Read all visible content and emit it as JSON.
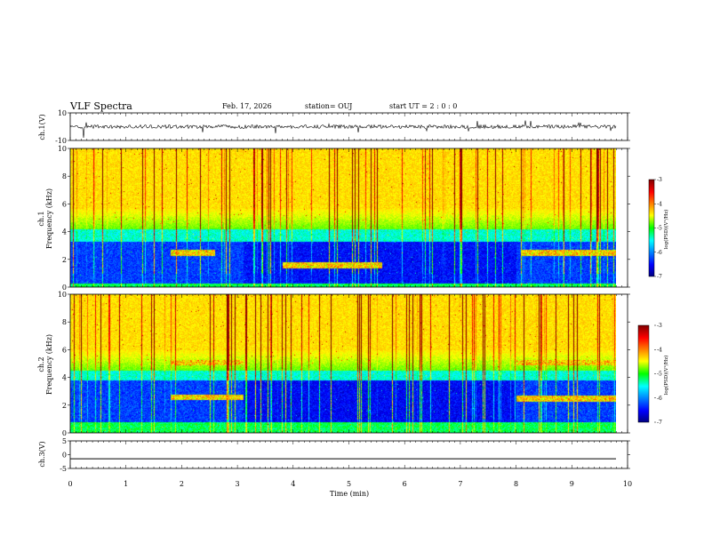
{
  "header": {
    "title": "VLF Spectra",
    "date": "Feb. 17, 2026",
    "station": "station= OUJ",
    "start": "start  UT  =   2  : 0   : 0"
  },
  "chart_data": [
    {
      "type": "line",
      "panel": "waveform-ch1",
      "ylabel": "ch.1(V)",
      "ylim": [
        -10,
        10
      ],
      "yticks": [
        "10",
        "-10"
      ],
      "xlim": [
        0,
        10
      ],
      "series": [
        {
          "values_note": "",
          "baseline": 0
        }
      ]
    },
    {
      "type": "heatmap",
      "panel": "spectrogram-ch1",
      "ylabel_ch": "ch.1",
      "ylabel": "Frequency  (kHz)",
      "ylim": [
        0,
        10
      ],
      "yticks": [
        "0",
        "2",
        "4",
        "6",
        "8",
        "10"
      ],
      "xlim": [
        0,
        9.8
      ],
      "colorbar": {
        "label": "log(PSD)(V²/Hz)",
        "ticks": [
          "-3",
          "-4",
          "-5",
          "-6",
          "-7"
        ],
        "range": [
          -7,
          -3
        ]
      },
      "low_band_khz": [
        0.3,
        3.3
      ],
      "hiss_top_khz": 4.2,
      "segments": [
        {
          "t0": 1.8,
          "t1": 2.6,
          "f": 2.5
        },
        {
          "t0": 8.1,
          "t1": 9.8,
          "f": 2.5
        },
        {
          "t0": 3.8,
          "t1": 4.8,
          "f": 1.6
        },
        {
          "t0": 4.8,
          "t1": 5.6,
          "f": 1.6
        }
      ]
    },
    {
      "type": "heatmap",
      "panel": "spectrogram-ch2",
      "ylabel_ch": "ch.2",
      "ylabel": "Frequency  (kHz)",
      "ylim": [
        0,
        10
      ],
      "yticks": [
        "0",
        "2",
        "4",
        "6",
        "8",
        "10"
      ],
      "xlim": [
        0,
        9.8
      ],
      "colorbar": {
        "label": "log(PSD)(V²/Hz)",
        "ticks": [
          "-3",
          "-4",
          "-5",
          "-6",
          "-7"
        ],
        "range": [
          -7,
          -3
        ]
      },
      "low_band_khz": [
        0.8,
        3.8
      ],
      "hiss_top_khz": 4.5,
      "segments": [
        {
          "t0": 1.8,
          "t1": 3.1,
          "f": 5.1
        },
        {
          "t0": 1.8,
          "t1": 3.1,
          "f": 2.6
        },
        {
          "t0": 8.0,
          "t1": 9.8,
          "f": 5.1
        },
        {
          "t0": 8.0,
          "t1": 9.8,
          "f": 2.5
        }
      ]
    },
    {
      "type": "line",
      "panel": "waveform-ch3",
      "ylabel": "ch.3(V)",
      "ylim": [
        -5,
        5
      ],
      "yticks": [
        "5",
        "0",
        "-5"
      ],
      "xlim": [
        0,
        10
      ],
      "series": [
        {
          "constant": -1.5
        }
      ]
    }
  ],
  "xaxis": {
    "label": "Time  (min)",
    "ticks": [
      "0",
      "1",
      "2",
      "3",
      "4",
      "5",
      "6",
      "7",
      "8",
      "9",
      "10"
    ],
    "range": [
      0,
      10
    ]
  },
  "colors": {
    "jet": [
      "#000080",
      "#0000ff",
      "#00ffff",
      "#00ff00",
      "#ffff00",
      "#ff0000",
      "#800000"
    ],
    "ink": "#000000"
  }
}
